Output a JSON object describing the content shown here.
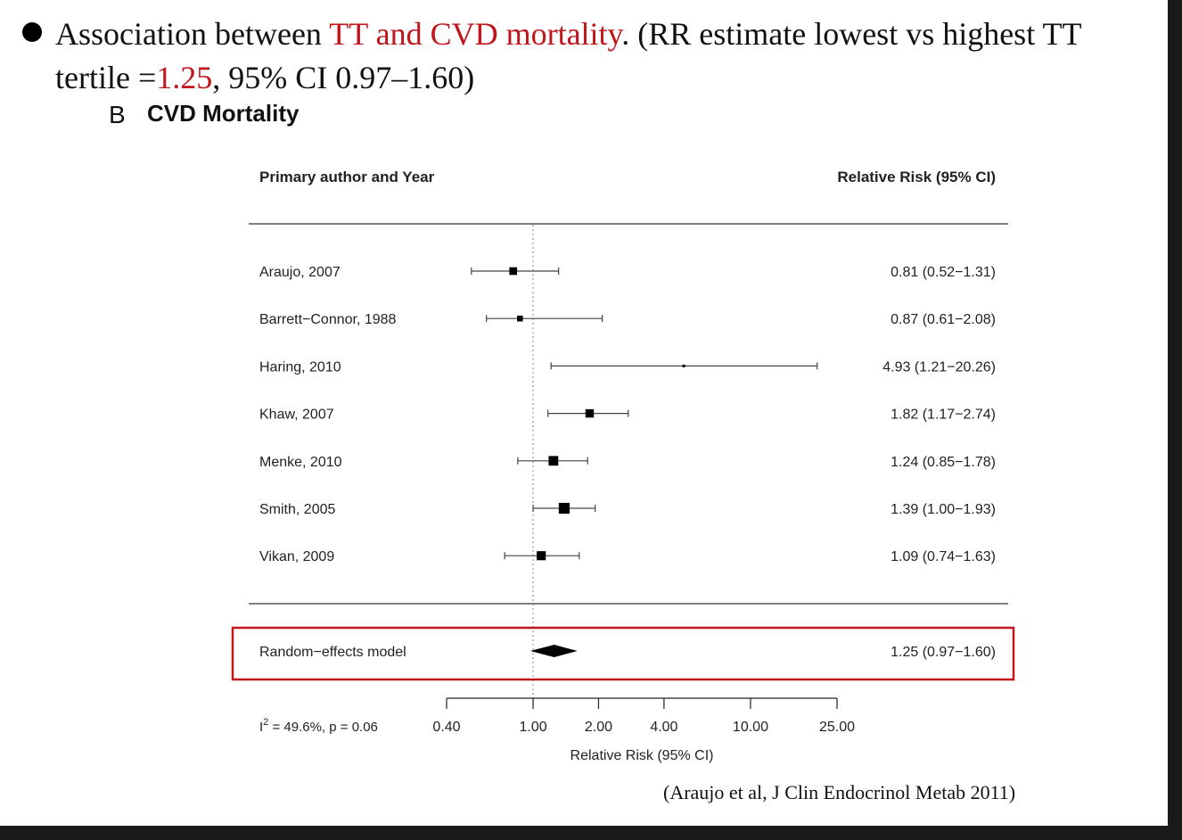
{
  "bullet": {
    "text_1": "Association between ",
    "highlight_1": "TT and CVD mortality",
    "text_2": ". (RR estimate lowest vs highest TT tertile =",
    "highlight_2": "1.25",
    "text_3": ", 95% CI 0.97–1.60)"
  },
  "figure": {
    "panel_letter": "B",
    "panel_title": "CVD Mortality"
  },
  "citation": "(Araujo et al, J Clin Endocrinol Metab 2011)",
  "colors": {
    "highlight": "#c0151b",
    "ink": "#111111"
  },
  "chart_data": {
    "type": "forest",
    "header_left": "Primary author and Year",
    "header_right": "Relative Risk (95% CI)",
    "studies": [
      {
        "label": "Araujo, 2007",
        "rr": 0.81,
        "lo": 0.52,
        "hi": 1.31,
        "text": "0.81 (0.52−1.31)"
      },
      {
        "label": "Barrett−Connor, 1988",
        "rr": 0.87,
        "lo": 0.61,
        "hi": 2.08,
        "text": "0.87 (0.61−2.08)"
      },
      {
        "label": "Haring, 2010",
        "rr": 4.93,
        "lo": 1.21,
        "hi": 20.26,
        "text": "4.93 (1.21−20.26)"
      },
      {
        "label": "Khaw, 2007",
        "rr": 1.82,
        "lo": 1.17,
        "hi": 2.74,
        "text": "1.82 (1.17−2.74)"
      },
      {
        "label": "Menke, 2010",
        "rr": 1.24,
        "lo": 0.85,
        "hi": 1.78,
        "text": "1.24 (0.85−1.78)"
      },
      {
        "label": "Smith, 2005",
        "rr": 1.39,
        "lo": 1.0,
        "hi": 1.93,
        "text": "1.39 (1.00−1.93)"
      },
      {
        "label": "Vikan, 2009",
        "rr": 1.09,
        "lo": 0.74,
        "hi": 1.63,
        "text": "1.09 (0.74−1.63)"
      }
    ],
    "summary": {
      "label": "Random−effects model",
      "rr": 1.25,
      "lo": 0.97,
      "hi": 1.6,
      "text": "1.25 (0.97−1.60)"
    },
    "heterogeneity_prefix": "I",
    "heterogeneity_sup": "2",
    "heterogeneity_rest": " = 49.6%, p = 0.06",
    "x_ticks": [
      0.4,
      1.0,
      2.0,
      4.0,
      10.0,
      25.0
    ],
    "x_tick_labels": [
      "0.40",
      "1.00",
      "2.00",
      "4.00",
      "10.00",
      "25.00"
    ],
    "xlabel": "Relative Risk (95% CI)",
    "x_scale": "log",
    "xlim": [
      0.4,
      25.0
    ],
    "reference_line": 1.0
  }
}
